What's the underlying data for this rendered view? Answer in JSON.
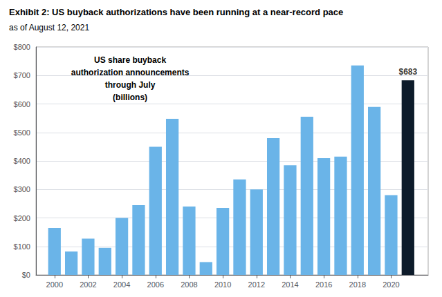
{
  "chart_data": {
    "type": "bar",
    "title": "Exhibit 2: US buyback authorizations have been running at a near-record pace",
    "subtitle": "as of August 12, 2021",
    "x": [
      2000,
      2001,
      2002,
      2003,
      2004,
      2005,
      2006,
      2007,
      2008,
      2009,
      2010,
      2011,
      2012,
      2013,
      2014,
      2015,
      2016,
      2017,
      2018,
      2019,
      2020,
      2021
    ],
    "values": [
      165,
      82,
      127,
      95,
      200,
      245,
      450,
      548,
      240,
      45,
      235,
      335,
      300,
      480,
      385,
      555,
      410,
      415,
      735,
      590,
      280,
      683
    ],
    "colors": [
      "#6ab4e8",
      "#6ab4e8",
      "#6ab4e8",
      "#6ab4e8",
      "#6ab4e8",
      "#6ab4e8",
      "#6ab4e8",
      "#6ab4e8",
      "#6ab4e8",
      "#6ab4e8",
      "#6ab4e8",
      "#6ab4e8",
      "#6ab4e8",
      "#6ab4e8",
      "#6ab4e8",
      "#6ab4e8",
      "#6ab4e8",
      "#6ab4e8",
      "#6ab4e8",
      "#6ab4e8",
      "#6ab4e8",
      "#0d1b2a"
    ],
    "xlim": [
      1998.9,
      2022.2
    ],
    "xticks": [
      2000,
      2002,
      2004,
      2006,
      2008,
      2010,
      2012,
      2014,
      2016,
      2018,
      2020
    ],
    "ylim": [
      0,
      800
    ],
    "yticks": [
      {
        "value": 0,
        "label": "$0"
      },
      {
        "value": 100,
        "label": "$100"
      },
      {
        "value": 200,
        "label": "$200"
      },
      {
        "value": 300,
        "label": "$300"
      },
      {
        "value": 400,
        "label": "$400"
      },
      {
        "value": 500,
        "label": "$500"
      },
      {
        "value": 600,
        "label": "$600"
      },
      {
        "value": 700,
        "label": "$700"
      },
      {
        "value": 800,
        "label": "$800"
      }
    ],
    "grid": true,
    "annotations": [
      {
        "x": 2021,
        "y": 683,
        "text": "$683"
      },
      {
        "text": "US share buyback\nauthorization announcements\nthrough July\n(billions)"
      }
    ]
  }
}
